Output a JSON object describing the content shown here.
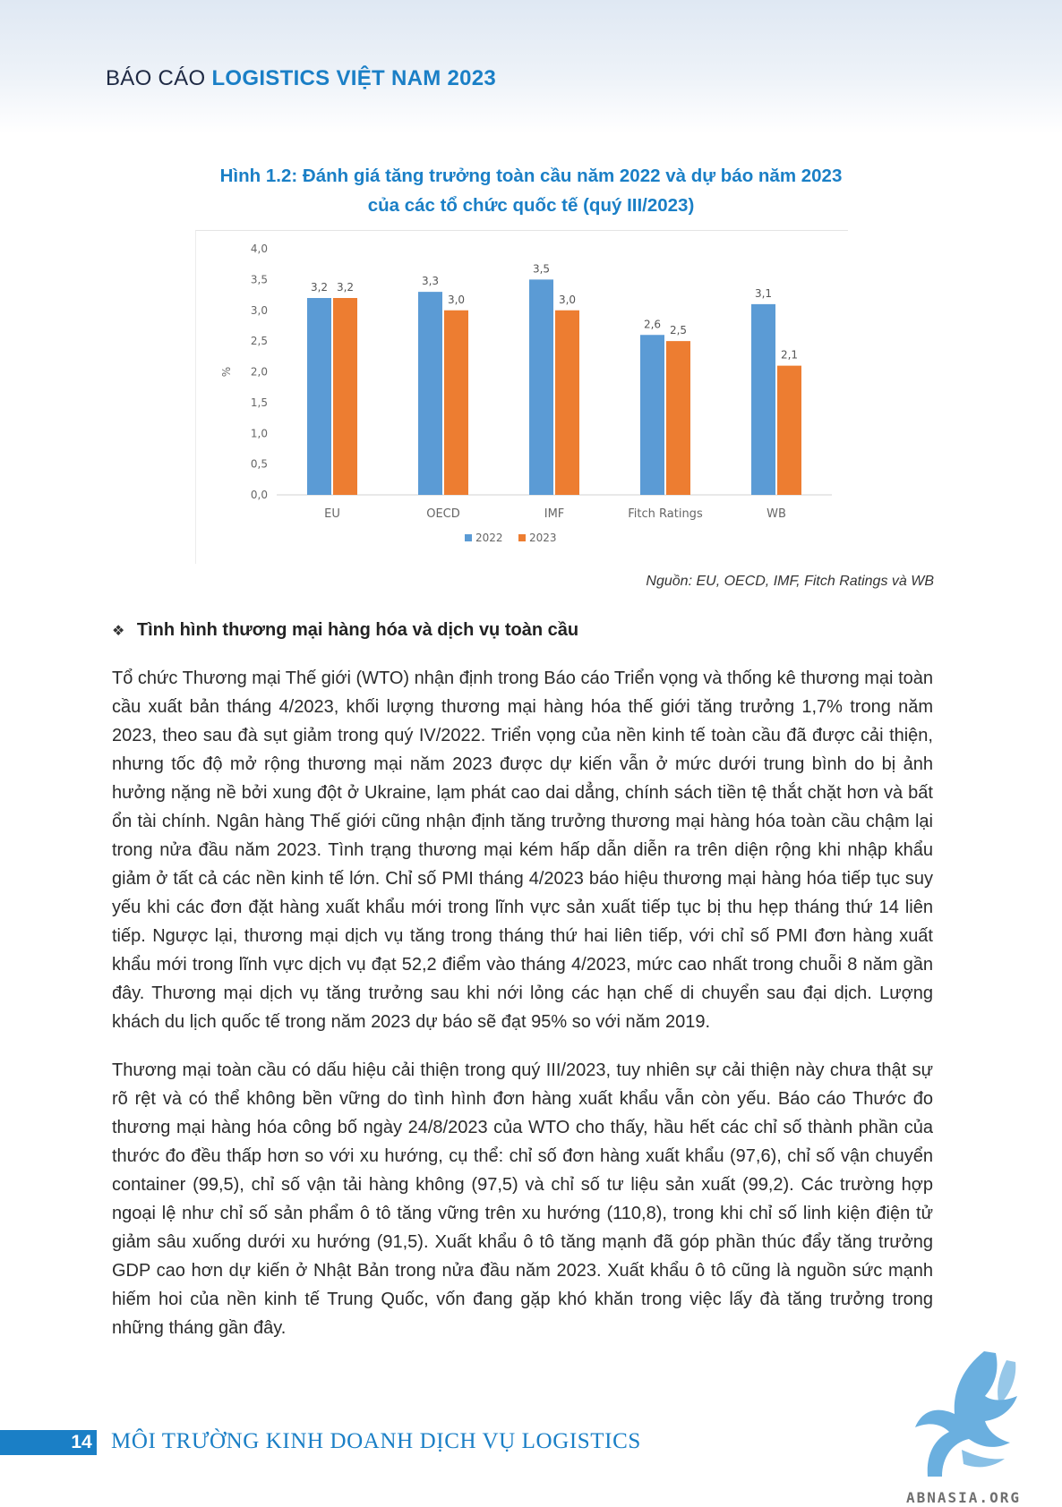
{
  "header": {
    "lead": "BÁO CÁO",
    "strong": "LOGISTICS VIỆT NAM 2023"
  },
  "figure": {
    "caption_line1": "Hình 1.2: Đánh giá tăng trưởng toàn cầu năm 2022 và dự báo năm 2023",
    "caption_line2": "của các tổ chức quốc tế (quý III/2023)",
    "source": "Nguồn: EU, OECD, IMF, Fitch Ratings và WB"
  },
  "chart_data": {
    "type": "bar",
    "title": "",
    "xlabel": "",
    "ylabel": "%",
    "ylim": [
      0,
      4.0
    ],
    "yticks": [
      "0,0",
      "0,5",
      "1,0",
      "1,5",
      "2,0",
      "2,5",
      "3,0",
      "3,5",
      "4,0"
    ],
    "categories": [
      "EU",
      "OECD",
      "IMF",
      "Fitch Ratings",
      "WB"
    ],
    "series": [
      {
        "name": "2022",
        "color": "#5b9bd5",
        "values": [
          3.2,
          3.3,
          3.5,
          2.6,
          3.1
        ],
        "labels": [
          "3,2",
          "3,3",
          "3,5",
          "2,6",
          "3,1"
        ]
      },
      {
        "name": "2023",
        "color": "#ed7d31",
        "values": [
          3.2,
          3.0,
          3.0,
          2.5,
          2.1
        ],
        "labels": [
          "3,2",
          "3,0",
          "3,0",
          "2,5",
          "2,1"
        ]
      }
    ],
    "grid": false,
    "legend": "bottom"
  },
  "section": {
    "bullet": "❖",
    "title": "Tình hình thương mại hàng hóa và dịch vụ toàn cầu"
  },
  "paragraphs": [
    "Tổ chức Thương mại Thế giới (WTO) nhận định trong Báo cáo Triển vọng và thống kê thương mại toàn cầu xuất bản tháng 4/2023, khối lượng thương mại hàng hóa thế giới tăng trưởng 1,7% trong năm 2023, theo sau đà sụt giảm trong quý IV/2022. Triển vọng của nền kinh tế toàn cầu đã được cải thiện, nhưng tốc độ mở rộng thương mại năm 2023 được dự kiến vẫn ở mức dưới trung bình do bị ảnh hưởng nặng nề bởi xung đột ở Ukraine, lạm phát cao dai dẳng, chính sách tiền tệ thắt chặt hơn và bất ổn tài chính. Ngân hàng Thế giới cũng nhận định tăng trưởng thương mại hàng hóa toàn cầu chậm lại trong nửa đầu năm 2023. Tình trạng thương mại kém hấp dẫn diễn ra trên diện rộng khi nhập khẩu giảm ở tất cả các nền kinh tế lớn. Chỉ số PMI tháng 4/2023 báo hiệu thương mại hàng hóa tiếp tục suy yếu khi các đơn đặt hàng xuất khẩu mới trong lĩnh vực sản xuất tiếp tục bị thu hẹp tháng thứ 14 liên tiếp. Ngược lại, thương mại dịch vụ tăng trong tháng thứ hai liên tiếp, với chỉ số PMI đơn hàng xuất khẩu mới trong lĩnh vực dịch vụ đạt 52,2 điểm vào tháng 4/2023, mức cao nhất trong chuỗi 8 năm gần đây. Thương mại dịch vụ tăng trưởng sau khi nới lỏng các hạn chế di chuyển sau đại dịch. Lượng khách du lịch quốc tế trong năm 2023 dự báo sẽ đạt 95% so với năm 2019.",
    "Thương mại toàn cầu có dấu hiệu cải thiện trong quý III/2023, tuy nhiên sự cải thiện này chưa thật sự rõ rệt và có thể không bền vững do tình hình đơn hàng xuất khẩu vẫn còn yếu. Báo cáo Thước đo thương mại hàng hóa công bố ngày 24/8/2023 của WTO cho thấy, hầu hết các chỉ số thành phần của thước đo đều thấp hơn so với xu hướng, cụ thể: chỉ số đơn hàng xuất khẩu (97,6), chỉ số vận chuyển container (99,5), chỉ số vận tải hàng không (97,5) và chỉ số tư liệu sản xuất (99,2). Các trường hợp ngoại lệ như chỉ số sản phẩm ô tô tăng vững trên xu hướng (110,8), trong khi chỉ số linh kiện điện tử giảm sâu xuống dưới xu hướng (91,5). Xuất khẩu ô tô tăng mạnh đã góp phần thúc đẩy tăng trưởng GDP cao hơn dự kiến ở Nhật Bản trong nửa đầu năm 2023. Xuất khẩu ô tô cũng là nguồn sức mạnh hiếm hoi của nền kinh tế Trung Quốc, vốn đang gặp khó khăn trong việc lấy đà tăng trưởng trong những tháng gần đây."
  ],
  "footer": {
    "page_number": "14",
    "title": "MÔI TRƯỜNG KINH DOANH DỊCH VỤ LOGISTICS",
    "logo_text": "ABNASIA.ORG",
    "logo_icon": "griffin-logo-icon",
    "brand_color": "#1a7fc6"
  }
}
